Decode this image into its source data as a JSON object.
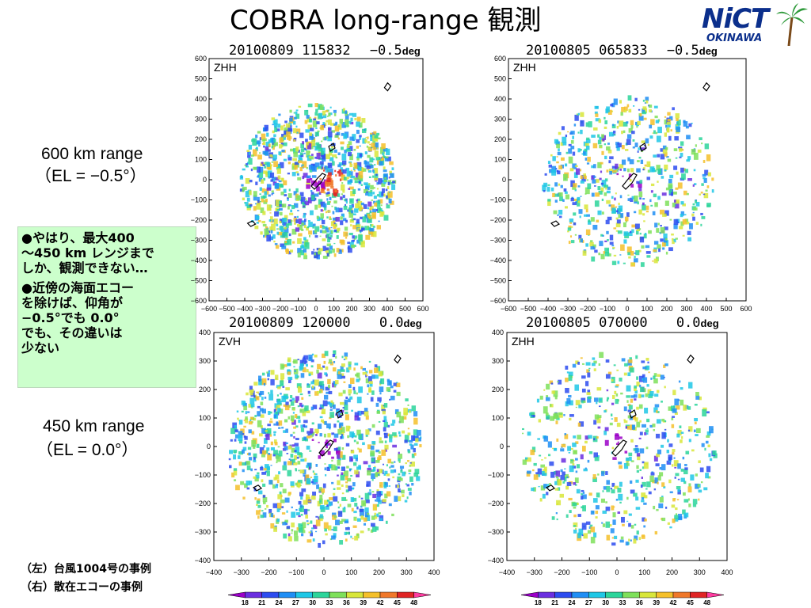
{
  "title": "COBRA long-range 観測",
  "logo": {
    "main": "NiCT",
    "sub": "OKINAWA",
    "icon": "palm-tree-icon"
  },
  "left_labels": {
    "range600_line1": "600 km range",
    "range600_line2": "（EL = −0.5°）",
    "range450_line1": "450 km range",
    "range450_line2": "（EL = 0.0°）"
  },
  "notes": {
    "note1": "●やはり、最大400\n～450 km レンジまで\nしか、観測できない…",
    "note2": "●近傍の海面エコー\nを除けば、仰角が\n−0.5°でも 0.0°\nでも、その違いは\n少ない"
  },
  "captions": {
    "left": "（左）台風1004号の事例",
    "right": "（右）散在エコーの事例"
  },
  "panels": [
    {
      "date": "20100809",
      "time": "115832",
      "angle": "−0.5",
      "unit": "deg",
      "var": "ZHH",
      "ticks_y": [
        "600",
        "500",
        "400",
        "300",
        "200",
        "100",
        "0",
        "−100",
        "−200",
        "−300",
        "−400",
        "−500",
        "−600"
      ],
      "ticks_x": [
        "−600",
        "−500",
        "−400",
        "−300",
        "−200",
        "−100",
        "0",
        "100",
        "200",
        "300",
        "400",
        "500",
        "600"
      ]
    },
    {
      "date": "20100805",
      "time": "065833",
      "angle": "−0.5",
      "unit": "deg",
      "var": "ZHH",
      "ticks_y": [
        "600",
        "500",
        "400",
        "300",
        "200",
        "100",
        "0",
        "−100",
        "−200",
        "−300",
        "−400",
        "−500",
        "−600"
      ],
      "ticks_x": [
        "−600",
        "−500",
        "−400",
        "−300",
        "−200",
        "−100",
        "0",
        "100",
        "200",
        "300",
        "400",
        "500",
        "600"
      ]
    },
    {
      "date": "20100809",
      "time": "120000",
      "angle": "0.0",
      "unit": "deg",
      "var": "ZVH",
      "ticks_y": [
        "400",
        "300",
        "200",
        "100",
        "0",
        "−100",
        "−200",
        "−300",
        "−400"
      ],
      "ticks_x": [
        "−400",
        "−300",
        "−200",
        "−100",
        "0",
        "100",
        "200",
        "300",
        "400"
      ]
    },
    {
      "date": "20100805",
      "time": "070000",
      "angle": "0.0",
      "unit": "deg",
      "var": "ZHH",
      "ticks_y": [
        "400",
        "300",
        "200",
        "100",
        "0",
        "−100",
        "−200",
        "−300",
        "−400"
      ],
      "ticks_x": [
        "−400",
        "−300",
        "−200",
        "−100",
        "0",
        "100",
        "200",
        "300",
        "400"
      ]
    }
  ],
  "colorbar": {
    "labels": [
      "18",
      "21",
      "24",
      "27",
      "30",
      "33",
      "36",
      "39",
      "42",
      "45",
      "48"
    ],
    "colors": [
      "#9b00c8",
      "#6a2ee0",
      "#2d4cf0",
      "#1f8ef5",
      "#1ec7e6",
      "#2cd59a",
      "#7ee05a",
      "#d8e63a",
      "#f5c02a",
      "#f0782a",
      "#e02424",
      "#ff3ca0"
    ]
  }
}
